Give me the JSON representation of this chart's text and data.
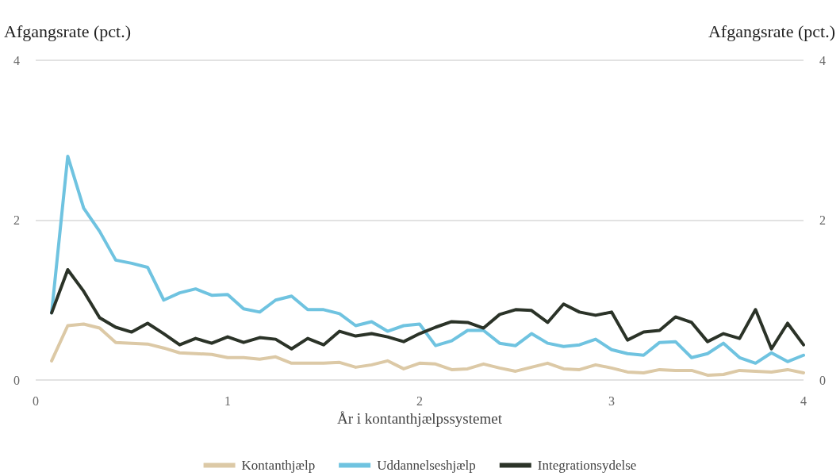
{
  "chart_data": {
    "type": "line",
    "xlabel": "År i kontanthjælpssystemet",
    "ylabel": "Afgangsrate (pct.)",
    "y2label": "Afgangsrate (pct.)",
    "x": [
      0.083,
      0.167,
      0.25,
      0.333,
      0.417,
      0.5,
      0.583,
      0.667,
      0.75,
      0.833,
      0.917,
      1,
      1.083,
      1.167,
      1.25,
      1.333,
      1.417,
      1.5,
      1.583,
      1.667,
      1.75,
      1.833,
      1.917,
      2,
      2.083,
      2.167,
      2.25,
      2.333,
      2.417,
      2.5,
      2.583,
      2.667,
      2.75,
      2.833,
      2.917,
      3,
      3.083,
      3.167,
      3.25,
      3.333,
      3.417,
      3.5,
      3.583,
      3.667,
      3.75,
      3.833,
      3.917,
      4
    ],
    "series": [
      {
        "name": "Kontanthjælp",
        "color": "#dcc9a6",
        "values": [
          0.24,
          0.68,
          0.7,
          0.65,
          0.47,
          0.46,
          0.45,
          0.4,
          0.34,
          0.33,
          0.32,
          0.28,
          0.28,
          0.26,
          0.29,
          0.21,
          0.21,
          0.21,
          0.22,
          0.16,
          0.19,
          0.24,
          0.14,
          0.21,
          0.2,
          0.13,
          0.14,
          0.2,
          0.15,
          0.11,
          0.16,
          0.21,
          0.14,
          0.13,
          0.19,
          0.15,
          0.1,
          0.09,
          0.13,
          0.12,
          0.12,
          0.06,
          0.07,
          0.12,
          0.11,
          0.1,
          0.13,
          0.09
        ]
      },
      {
        "name": "Uddannelseshjælp",
        "color": "#6fc3e0",
        "values": [
          0.84,
          2.8,
          2.15,
          1.86,
          1.5,
          1.46,
          1.41,
          1.0,
          1.09,
          1.14,
          1.06,
          1.07,
          0.89,
          0.85,
          1.0,
          1.05,
          0.88,
          0.88,
          0.83,
          0.68,
          0.73,
          0.61,
          0.68,
          0.7,
          0.43,
          0.49,
          0.62,
          0.62,
          0.46,
          0.43,
          0.58,
          0.46,
          0.42,
          0.44,
          0.51,
          0.38,
          0.33,
          0.31,
          0.47,
          0.48,
          0.28,
          0.33,
          0.46,
          0.28,
          0.21,
          0.34,
          0.23,
          0.31
        ]
      },
      {
        "name": "Integrationsydelse",
        "color": "#2b3328",
        "values": [
          0.84,
          1.38,
          1.11,
          0.78,
          0.66,
          0.6,
          0.71,
          0.58,
          0.44,
          0.52,
          0.46,
          0.54,
          0.47,
          0.53,
          0.51,
          0.39,
          0.52,
          0.44,
          0.61,
          0.55,
          0.58,
          0.54,
          0.48,
          0.58,
          0.66,
          0.73,
          0.72,
          0.65,
          0.82,
          0.88,
          0.87,
          0.72,
          0.95,
          0.85,
          0.81,
          0.85,
          0.5,
          0.6,
          0.62,
          0.79,
          0.72,
          0.48,
          0.58,
          0.52,
          0.88,
          0.39,
          0.71,
          0.44
        ]
      }
    ],
    "xlim": [
      0,
      4
    ],
    "xticks": [
      0,
      1,
      2,
      3,
      4
    ],
    "ylim": [
      0,
      4
    ],
    "yticks": [
      0,
      2,
      4
    ],
    "y2lim": [
      0,
      4
    ],
    "y2ticks": [
      0,
      2,
      4
    ],
    "grid": "y",
    "legend": "bottom",
    "marker": "none",
    "line_style": "solid"
  }
}
